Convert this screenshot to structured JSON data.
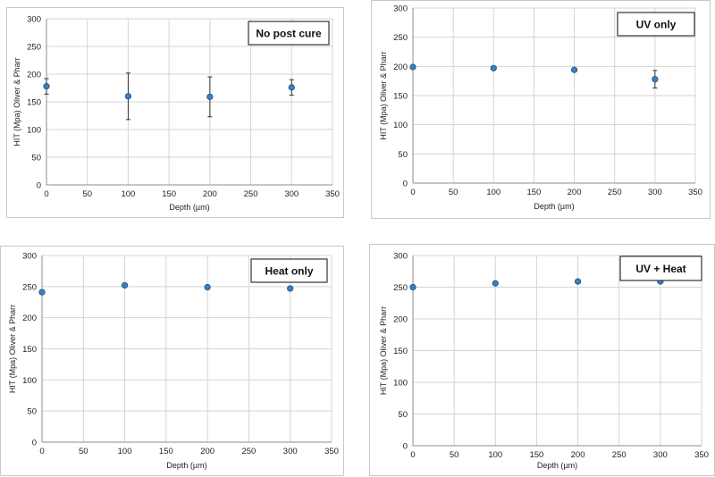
{
  "chart_data": [
    {
      "type": "scatter",
      "label": "No post cure",
      "xlabel": "Depth (µm)",
      "ylabel": "HIT (Mpa) Oliver & Pharr",
      "xlim": [
        0,
        350
      ],
      "ylim": [
        0,
        300
      ],
      "xticks": [
        0,
        50,
        100,
        150,
        200,
        250,
        300,
        350
      ],
      "yticks": [
        0,
        50,
        100,
        150,
        200,
        250,
        300
      ],
      "grid": true,
      "legend": "top-right",
      "x": [
        0,
        100,
        200,
        300
      ],
      "y": [
        178,
        160,
        159,
        176
      ],
      "error": [
        14,
        42,
        36,
        14
      ]
    },
    {
      "type": "scatter",
      "label": "UV only",
      "xlabel": "Depth (µm)",
      "ylabel": "HIT (Mpa) Oliver & Pharr",
      "xlim": [
        0,
        350
      ],
      "ylim": [
        0,
        300
      ],
      "xticks": [
        0,
        50,
        100,
        150,
        200,
        250,
        300,
        350
      ],
      "yticks": [
        0,
        50,
        100,
        150,
        200,
        250,
        300
      ],
      "grid": true,
      "legend": "top-right",
      "x": [
        0,
        100,
        200,
        300
      ],
      "y": [
        199,
        197,
        194,
        178
      ],
      "error": [
        0,
        0,
        0,
        15
      ]
    },
    {
      "type": "scatter",
      "label": "Heat only",
      "xlabel": "Depth (µm)",
      "ylabel": "HIT (Mpa) Oliver & Pharr",
      "xlim": [
        0,
        350
      ],
      "ylim": [
        0,
        300
      ],
      "xticks": [
        0,
        50,
        100,
        150,
        200,
        250,
        300,
        350
      ],
      "yticks": [
        0,
        50,
        100,
        150,
        200,
        250,
        300
      ],
      "grid": true,
      "legend": "top-right",
      "x": [
        0,
        100,
        200,
        300
      ],
      "y": [
        241,
        252,
        249,
        247
      ],
      "error": [
        0,
        0,
        0,
        0
      ]
    },
    {
      "type": "scatter",
      "label": "UV + Heat",
      "xlabel": "Depth (µm)",
      "ylabel": "HIT (Mpa) Oliver & Pharr",
      "xlim": [
        0,
        350
      ],
      "ylim": [
        0,
        300
      ],
      "xticks": [
        0,
        50,
        100,
        150,
        200,
        250,
        300,
        350
      ],
      "yticks": [
        0,
        50,
        100,
        150,
        200,
        250,
        300
      ],
      "grid": true,
      "legend": "top-right",
      "x": [
        0,
        100,
        200,
        300
      ],
      "y": [
        250,
        256,
        259,
        259
      ],
      "error": [
        0,
        0,
        0,
        0
      ]
    }
  ]
}
